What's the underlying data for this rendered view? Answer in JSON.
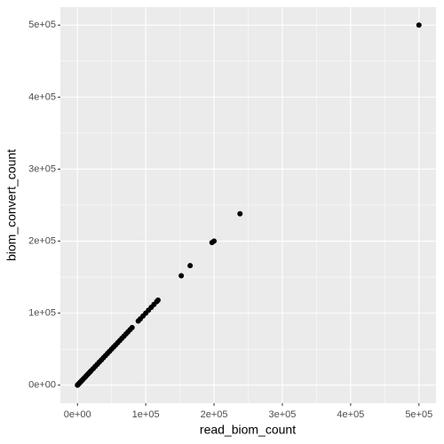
{
  "chart_data": {
    "type": "scatter",
    "x_label": "read_biom_count",
    "y_label": "biom_convert_count",
    "color": "#000000",
    "x": [
      0,
      500,
      1000,
      2000,
      3000,
      4000,
      5000,
      6500,
      8000,
      10000,
      12000,
      14000,
      16000,
      18000,
      20000,
      23000,
      26000,
      29000,
      32000,
      35000,
      38000,
      41000,
      44000,
      47000,
      50000,
      53000,
      56000,
      59000,
      62000,
      65000,
      68000,
      71000,
      74000,
      77000,
      80000,
      89000,
      92000,
      96000,
      100000,
      104000,
      108000,
      112000,
      116000,
      118000,
      152000,
      165000,
      197000,
      200000,
      238000,
      500000
    ],
    "y": [
      0,
      500,
      1000,
      2000,
      3000,
      4000,
      5000,
      6500,
      8000,
      10000,
      12000,
      14000,
      16000,
      18000,
      20000,
      23000,
      26000,
      29000,
      32000,
      35000,
      38000,
      41000,
      44000,
      47000,
      50000,
      53000,
      56000,
      59000,
      62000,
      65000,
      68000,
      71000,
      74000,
      77000,
      80000,
      89000,
      92000,
      96000,
      100000,
      104000,
      108000,
      112000,
      116000,
      118000,
      152000,
      166000,
      198000,
      200000,
      238000,
      500000
    ],
    "xlim": [
      -25000,
      525000
    ],
    "ylim": [
      -25000,
      525000
    ],
    "xticks": [
      {
        "value": 0,
        "label": "0e+00"
      },
      {
        "value": 100000,
        "label": "1e+05"
      },
      {
        "value": 200000,
        "label": "2e+05"
      },
      {
        "value": 300000,
        "label": "3e+05"
      },
      {
        "value": 400000,
        "label": "4e+05"
      },
      {
        "value": 500000,
        "label": "5e+05"
      }
    ],
    "yticks": [
      {
        "value": 0,
        "label": "0e+00"
      },
      {
        "value": 100000,
        "label": "1e+05"
      },
      {
        "value": 200000,
        "label": "2e+05"
      },
      {
        "value": 300000,
        "label": "3e+05"
      },
      {
        "value": 400000,
        "label": "4e+05"
      },
      {
        "value": 500000,
        "label": "5e+05"
      }
    ],
    "minor_xticks": [
      50000,
      150000,
      250000,
      350000,
      450000
    ],
    "minor_yticks": [
      50000,
      150000,
      250000,
      350000,
      450000
    ],
    "grid": true
  }
}
